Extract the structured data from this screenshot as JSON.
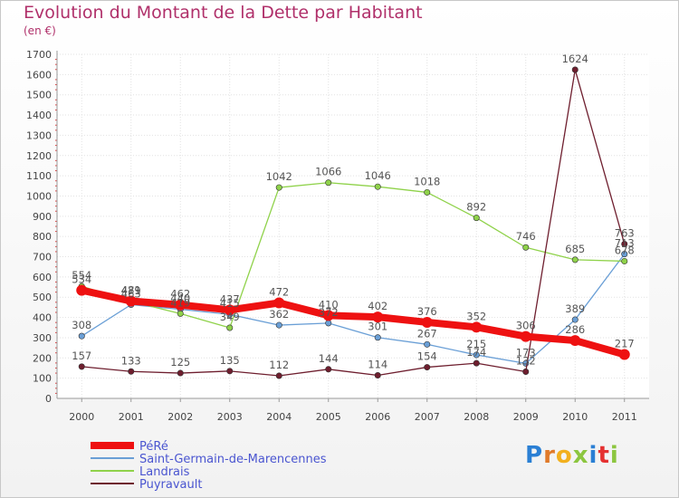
{
  "chart_data": {
    "type": "line",
    "title": "Evolution du Montant de la Dette par Habitant",
    "subtitle": "(en €)",
    "x": [
      "2000",
      "2001",
      "2002",
      "2003",
      "2004",
      "2005",
      "2006",
      "2007",
      "2008",
      "2009",
      "2010",
      "2011"
    ],
    "ylim": [
      0,
      1700
    ],
    "yticks": [
      0,
      100,
      200,
      300,
      400,
      500,
      600,
      700,
      800,
      900,
      1000,
      1100,
      1200,
      1300,
      1400,
      1500,
      1600,
      1700
    ],
    "grid": true,
    "legend_position": "bottom-left",
    "series": [
      {
        "name": "Saint-Germain-de-Marencennes",
        "color": "#6a9fd6",
        "values": [
          308,
          463,
          440,
          415,
          362,
          372,
          301,
          267,
          215,
          173,
          389,
          713
        ]
      },
      {
        "name": "Landrais",
        "color": "#8fd24a",
        "values": [
          554,
          479,
          419,
          349,
          1042,
          1066,
          1046,
          1018,
          892,
          746,
          685,
          678
        ]
      },
      {
        "name": "Puyravault",
        "color": "#6e1e2e",
        "values": [
          157,
          133,
          125,
          135,
          112,
          144,
          114,
          154,
          174,
          132,
          1624,
          763
        ]
      },
      {
        "name": "PéRé",
        "color": "#ee1111",
        "values": [
          534,
          481,
          462,
          437,
          472,
          410,
          402,
          376,
          352,
          306,
          286,
          217
        ]
      }
    ],
    "point_labels": {
      "Saint-Germain-de-Marencennes": [
        "308",
        "463",
        "440",
        "415",
        "362",
        "372",
        "301",
        "267",
        "215",
        "173",
        "389",
        "713"
      ],
      "Landrais": [
        "554",
        "479",
        "419",
        "349",
        "1042",
        "1066",
        "1046",
        "1018",
        "892",
        "746",
        "685",
        "678"
      ],
      "Puyravault": [
        "157",
        "133",
        "125",
        "135",
        "112",
        "144",
        "114",
        "154",
        "174",
        "132",
        "1624",
        "763"
      ],
      "PéRé": [
        "534",
        "481",
        "462",
        "437",
        "472",
        "410",
        "402",
        "376",
        "352",
        "306",
        "286",
        "217"
      ]
    },
    "legend": [
      "PéRé",
      "Saint-Germain-de-Marencennes",
      "Landrais",
      "Puyravault"
    ]
  },
  "logo": {
    "letters": [
      "P",
      "r",
      "o",
      "x",
      "i",
      "t",
      "i"
    ]
  }
}
